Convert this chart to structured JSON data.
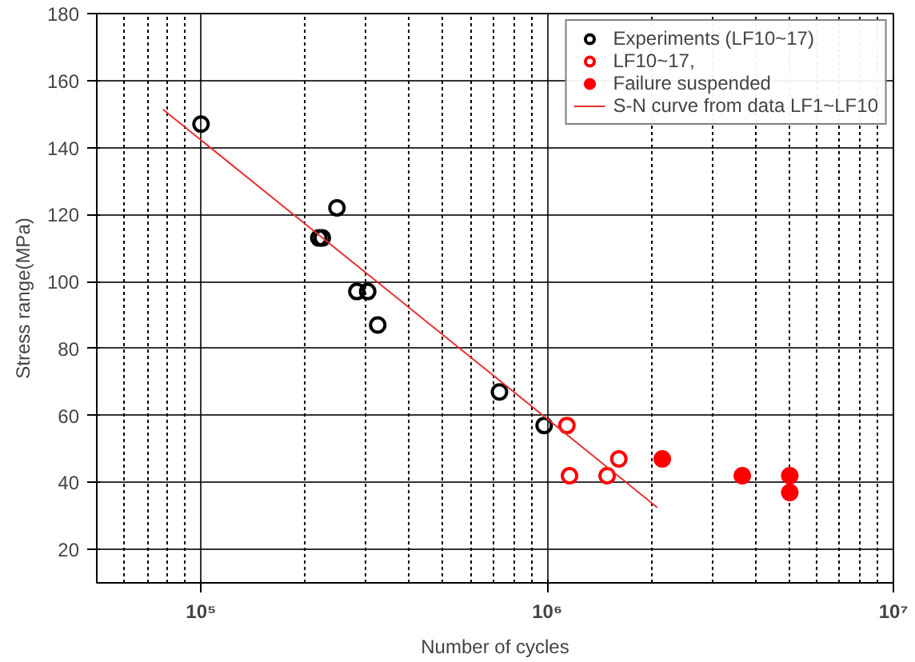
{
  "chart_data": {
    "type": "scatter",
    "xlabel": "Number of cycles",
    "ylabel": "Stress range(MPa)",
    "log": "x",
    "xlim": [
      50000,
      10000000
    ],
    "ylim": [
      10,
      180
    ],
    "xticks": [
      {
        "value": 100000,
        "label": "10⁵"
      },
      {
        "value": 1000000,
        "label": "10⁶"
      },
      {
        "value": 10000000,
        "label": "10⁷"
      }
    ],
    "yticks": [
      20,
      40,
      60,
      80,
      100,
      120,
      140,
      160,
      180
    ],
    "grid": true,
    "legend": "top right",
    "marker": "circle_open",
    "series": [
      {
        "name": "Experiments (LF10~17)",
        "color": "#000000",
        "x": [
          100000,
          219000,
          224000,
          247000,
          282000,
          303000,
          324000,
          728000,
          980000
        ],
        "values": [
          147,
          113,
          113,
          122,
          97,
          97,
          87,
          67,
          57
        ]
      },
      {
        "name": "LF10~17,",
        "color": "#ff0000",
        "x": [
          1140000,
          1160000,
          1490000,
          1610000
        ],
        "values": [
          57,
          42,
          42,
          47
        ]
      },
      {
        "name": "Failure suspended",
        "color": "#ff0000",
        "marker": "circle",
        "x": [
          2150000,
          3660000,
          5020000,
          5020000
        ],
        "values": [
          47,
          42,
          42,
          37
        ]
      },
      {
        "name": "S-N curve from data LF1~LF10",
        "type": "line",
        "marker": "none",
        "line_style": "solid",
        "color": "#e83030",
        "x": [
          77600,
          2080000
        ],
        "values": [
          151.4,
          32.5
        ]
      }
    ]
  }
}
